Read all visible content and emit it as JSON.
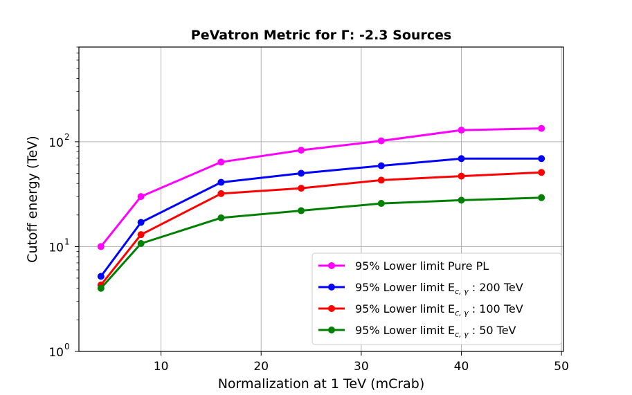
{
  "chart_data": {
    "type": "line",
    "title": "PeVatron Metric for Γ: -2.3 Sources",
    "xlabel": "Normalization at 1 TeV (mCrab)",
    "ylabel": "Cutoff energy (TeV)",
    "xscale": "linear",
    "yscale": "log",
    "xlim": [
      1.8,
      50.2
    ],
    "ylim": [
      1,
      800
    ],
    "grid": true,
    "legend_position": "lower-right",
    "x_ticks": [
      {
        "value": 10,
        "label": "10"
      },
      {
        "value": 20,
        "label": "20"
      },
      {
        "value": 30,
        "label": "30"
      },
      {
        "value": 40,
        "label": "40"
      },
      {
        "value": 50,
        "label": "50"
      }
    ],
    "y_ticks": [
      {
        "value": 1,
        "base": "10",
        "exp": "0"
      },
      {
        "value": 10,
        "base": "10",
        "exp": "1"
      },
      {
        "value": 100,
        "base": "10",
        "exp": "2"
      }
    ],
    "x": [
      4,
      8,
      16,
      24,
      32,
      40,
      48
    ],
    "series": [
      {
        "name": "95% Lower limit Pure PL",
        "legend_main": "95% Lower limit Pure PL",
        "legend_sub": "",
        "legend_tail": "",
        "color": "#ff00ff",
        "values": [
          10,
          30,
          64,
          83,
          102,
          129,
          134
        ]
      },
      {
        "name": "95% Lower limit E_{c,γ} : 200 TeV",
        "legend_main": "95% Lower limit E",
        "legend_sub": "c, γ",
        "legend_tail": " : 200 TeV",
        "color": "#0000ff",
        "values": [
          5.2,
          17,
          41,
          50,
          59,
          69,
          69
        ]
      },
      {
        "name": "95% Lower limit E_{c,γ} : 100 TeV",
        "legend_main": "95% Lower limit E",
        "legend_sub": "c, γ",
        "legend_tail": " : 100 TeV",
        "color": "#ff0000",
        "values": [
          4.3,
          13,
          32,
          36,
          43,
          47,
          51
        ]
      },
      {
        "name": "95% Lower limit E_{c,γ} : 50 TeV",
        "legend_main": "95% Lower limit E",
        "legend_sub": "c, γ",
        "legend_tail": " : 50 TeV",
        "color": "#008000",
        "values": [
          4.0,
          10.7,
          18.8,
          22,
          25.8,
          27.7,
          29.3
        ]
      }
    ]
  }
}
